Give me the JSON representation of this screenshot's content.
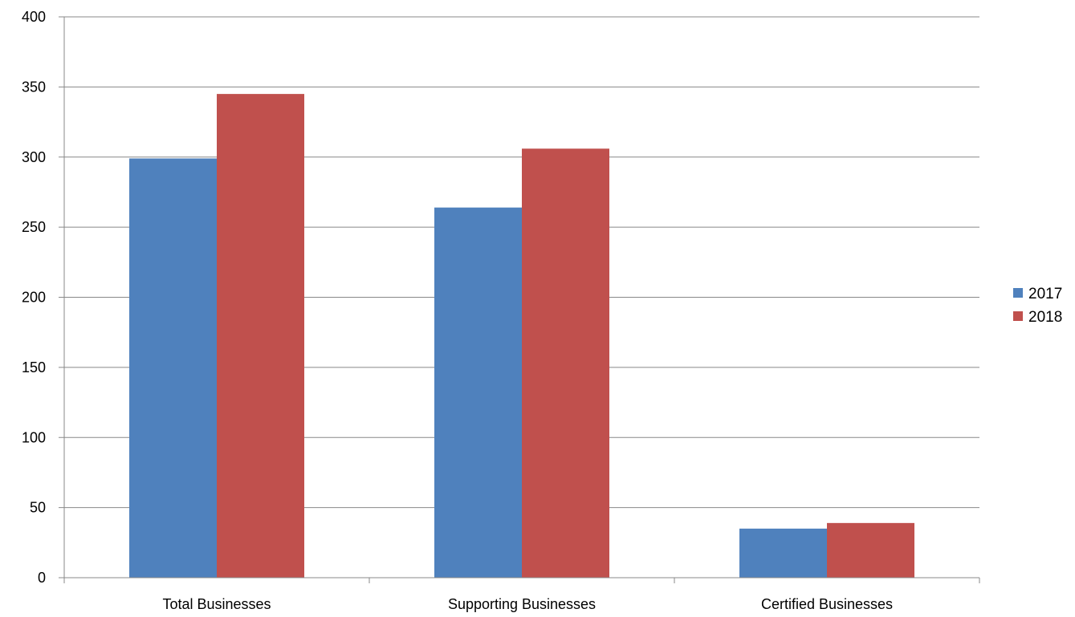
{
  "chart_data": {
    "type": "bar",
    "categories": [
      "Total Businesses",
      "Supporting Businesses",
      "Certified Businesses"
    ],
    "series": [
      {
        "name": "2017",
        "values": [
          299,
          264,
          35
        ],
        "color": "#4f81bd"
      },
      {
        "name": "2018",
        "values": [
          345,
          306,
          39
        ],
        "color": "#c0504d"
      }
    ],
    "ylim": [
      0,
      400
    ],
    "yticks": [
      0,
      50,
      100,
      150,
      200,
      250,
      300,
      350,
      400
    ],
    "grid": true,
    "legend_position": "right",
    "title": "",
    "xlabel": "",
    "ylabel": ""
  }
}
